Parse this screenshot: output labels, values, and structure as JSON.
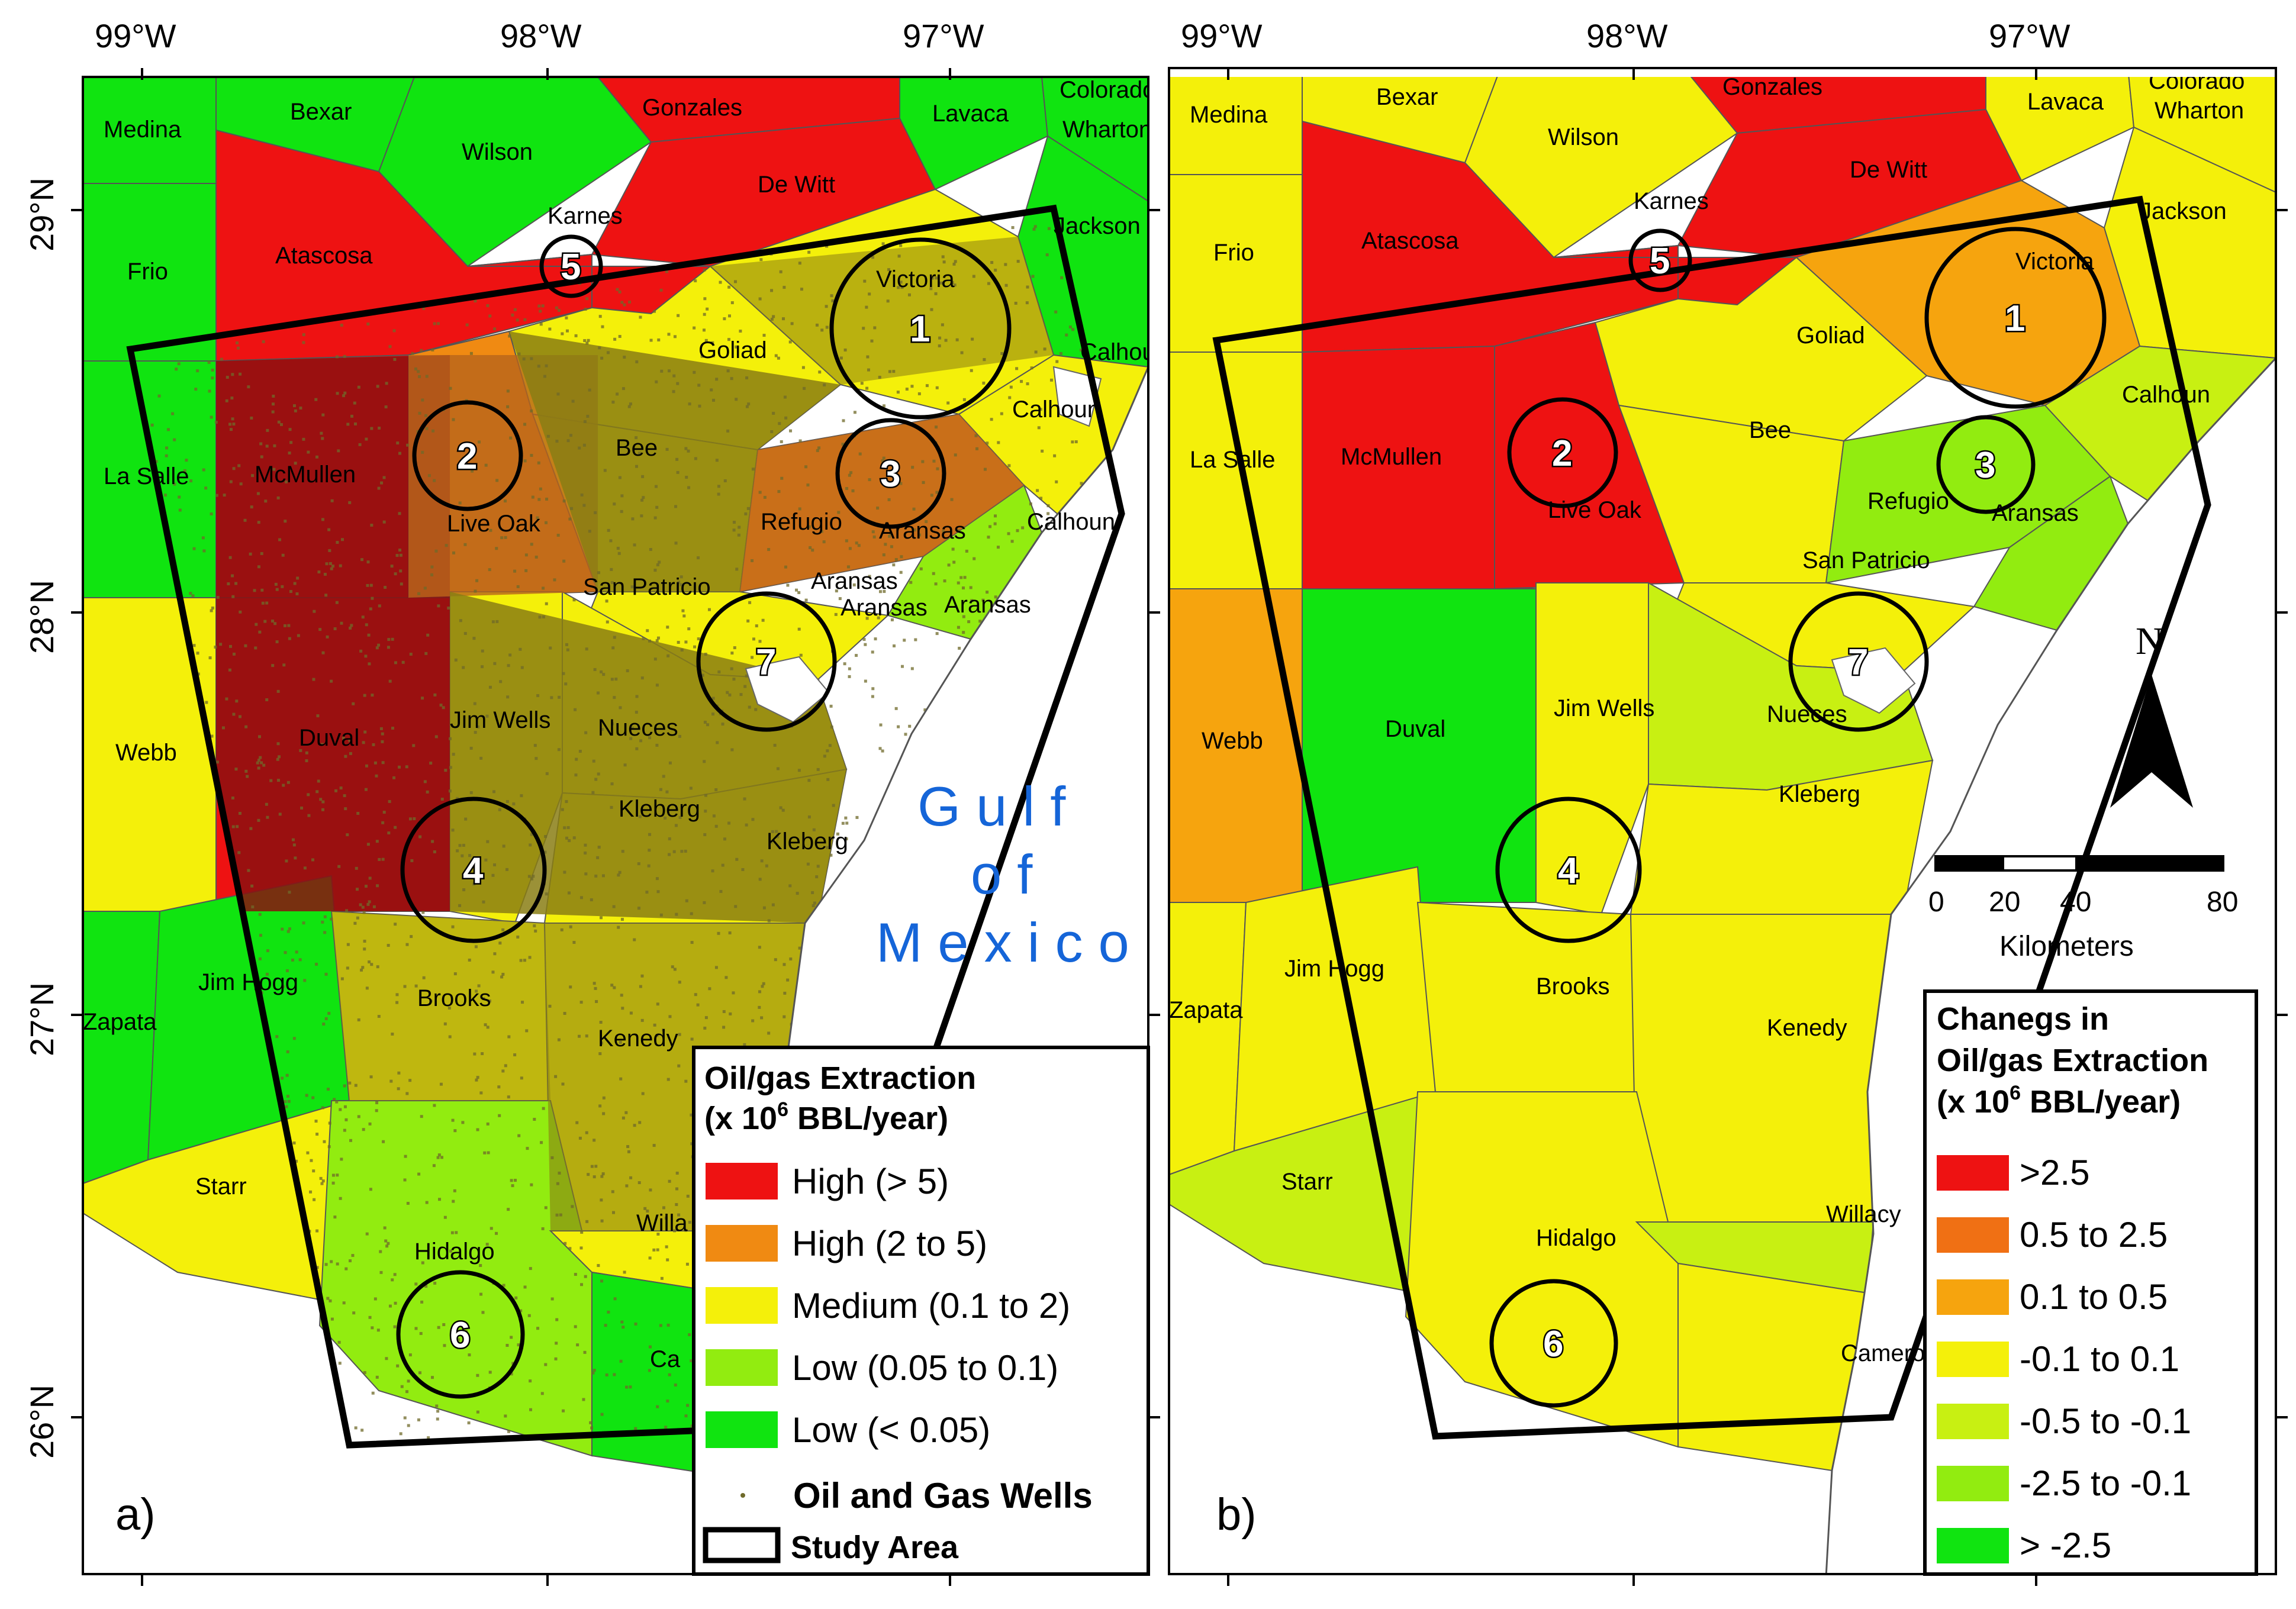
{
  "colors": {
    "red": "#ee1212",
    "dark_red": "#8b1010",
    "orange": "#f08a12",
    "orange_light": "#f6a40e",
    "orange_dark": "#b8641c",
    "yellow": "#f4f00a",
    "olive": "#8a7e14",
    "lime": "#c8f012",
    "light_green": "#92ec10",
    "green": "#10e410",
    "well_dots": "#6f6a2a",
    "water": "#ffffff",
    "gulf_text": "#1565d8"
  },
  "axes": {
    "top_lon_labels": [
      "99°W",
      "98°W",
      "97°W"
    ],
    "lat_labels": [
      "29°N",
      "28°N",
      "27°N",
      "26°N"
    ]
  },
  "gulf_label": [
    "Gulf",
    "of",
    "Mexico"
  ],
  "panel_a": {
    "tag": "a)",
    "counties": {
      "medina": "Medina",
      "bexar": "Bexar",
      "wilson": "Wilson",
      "gonzales": "Gonzales",
      "lavaca": "Lavaca",
      "colorado": "Colorado",
      "wharton": "Wharton",
      "dewitt": "De Witt",
      "karnes": "Karnes",
      "jackson": "Jackson",
      "frio": "Frio",
      "atascosa": "Atascosa",
      "victoria": "Victoria",
      "goliad": "Goliad",
      "calhoun1": "Calhoun",
      "calhoun2": "Calhoun",
      "calhoun3": "Calhoun",
      "lasalle": "La Salle",
      "mcmullen": "McMullen",
      "liveoak": "Live Oak",
      "bee": "Bee",
      "refugio": "Refugio",
      "aransas1": "Aransas",
      "aransas2": "Aransas",
      "aransas3": "Aransas",
      "aransas4": "Aransas",
      "sanpatricio": "San Patricio",
      "webb": "Webb",
      "duval": "Duval",
      "jimwells": "Jim Wells",
      "nueces": "Nueces",
      "kleberg1": "Kleberg",
      "kleberg2": "Kleberg",
      "jimhogg": "Jim Hogg",
      "zapata": "Zapata",
      "brooks": "Brooks",
      "kenedy": "Kenedy",
      "starr": "Starr",
      "willacy": "Willa",
      "hidalgo": "Hidalgo",
      "cameron": "Ca"
    },
    "legend": {
      "title_line1": "Oil/gas Extraction",
      "title_line2_prefix": "(x 10",
      "title_line2_sup": "6",
      "title_line2_suffix": " BBL/year)",
      "items": [
        {
          "label": "High (> 5)",
          "color": "#ee1212"
        },
        {
          "label": "High (2 to 5)",
          "color": "#f08a12"
        },
        {
          "label": "Medium (0.1 to 2)",
          "color": "#f4f00a"
        },
        {
          "label": "Low (0.05 to 0.1)",
          "color": "#92ec10"
        },
        {
          "label": "Low (< 0.05)",
          "color": "#10e410"
        }
      ],
      "wells_label": "Oil and Gas Wells",
      "study_label": "Study Area"
    }
  },
  "panel_b": {
    "tag": "b)",
    "counties": {
      "medina": "Medina",
      "bexar": "Bexar",
      "wilson": "Wilson",
      "gonzales": "Gonzales",
      "lavaca": "Lavaca",
      "colorado": "Colorado",
      "wharton": "Wharton",
      "dewitt": "De Witt",
      "karnes": "Karnes",
      "jackson": "Jackson",
      "frio": "Frio",
      "atascosa": "Atascosa",
      "victoria": "Victoria",
      "goliad": "Goliad",
      "calhoun": "Calhoun",
      "lasalle": "La Salle",
      "mcmullen": "McMullen",
      "liveoak": "Live Oak",
      "bee": "Bee",
      "refugio": "Refugio",
      "aransas": "Aransas",
      "sanpatricio": "San Patricio",
      "webb": "Webb",
      "duval": "Duval",
      "jimwells": "Jim Wells",
      "nueces": "Nueces",
      "kleberg": "Kleberg",
      "jimhogg": "Jim Hogg",
      "zapata": "Zapata",
      "brooks": "Brooks",
      "kenedy": "Kenedy",
      "starr": "Starr",
      "willacy": "Willacy",
      "hidalgo": "Hidalgo",
      "cameron": "Cameron"
    },
    "legend": {
      "title_line1": "Chanegs in",
      "title_line2": "Oil/gas Extraction",
      "title_line3_prefix": "(x 10",
      "title_line3_sup": "6",
      "title_line3_suffix": " BBL/year)",
      "items": [
        {
          "label": ">2.5",
          "color": "#ee1212"
        },
        {
          "label": "0.5 to 2.5",
          "color": "#f07014"
        },
        {
          "label": "0.1 to 0.5",
          "color": "#f6a40e"
        },
        {
          "label": "-0.1 to 0.1",
          "color": "#f4f00a"
        },
        {
          "label": "-0.5 to -0.1",
          "color": "#c8f012"
        },
        {
          "label": "-2.5 to -0.1",
          "color": "#92ec10"
        },
        {
          "label": "> -2.5",
          "color": "#10e410"
        }
      ]
    },
    "north_label": "N",
    "scale": {
      "ticks": [
        "0",
        "20",
        "40",
        "80"
      ],
      "unit": "Kilometers"
    }
  },
  "circles": [
    "1",
    "2",
    "3",
    "4",
    "5",
    "6",
    "7"
  ]
}
